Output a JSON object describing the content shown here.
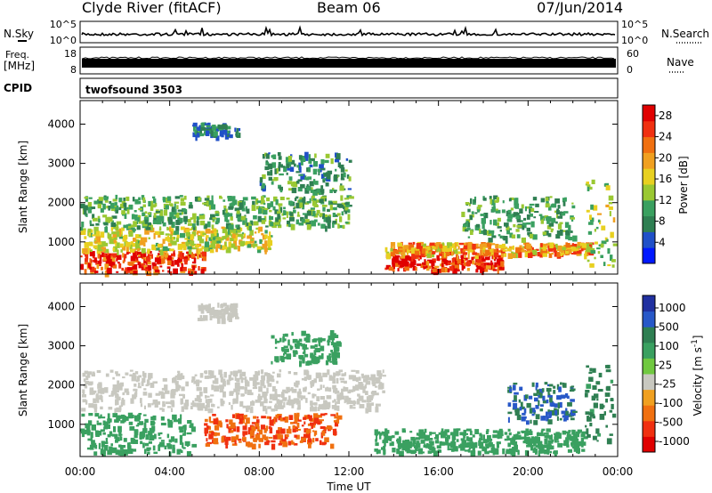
{
  "header": {
    "station": "Clyde River (fitACF)",
    "beam": "Beam 06",
    "date": "07/Jun/2014"
  },
  "top_panels": {
    "nsky_label": "N.Sky",
    "nsearch_label": "N.Search",
    "freq_label": "Freq.",
    "freq_unit": "[MHz]",
    "nave_label": "Nave",
    "cpid_label": "CPID",
    "cpid_value": "twofsound 3503",
    "noise_ticks": [
      "10^5",
      "10^0"
    ],
    "freq_ticks": [
      "18",
      "8"
    ],
    "nave_ticks": [
      "60",
      "0"
    ]
  },
  "chart_data": [
    {
      "type": "heatmap",
      "title": "",
      "xlabel": "Time UT",
      "ylabel": "Slant Range [km]",
      "xlim": [
        0,
        24
      ],
      "ylim": [
        180,
        4600
      ],
      "x_ticks": [
        "00:00",
        "04:00",
        "08:00",
        "12:00",
        "16:00",
        "20:00",
        "00:00"
      ],
      "y_ticks": [
        1000,
        2000,
        3000,
        4000
      ],
      "colorbar": {
        "label": "Power [dB]",
        "ticks": [
          4,
          8,
          12,
          16,
          20,
          24,
          28
        ],
        "range": [
          0,
          30
        ],
        "colors": [
          "#0018ff",
          "#2050c8",
          "#2f7f52",
          "#3aa060",
          "#9ac832",
          "#e8d020",
          "#f0a020",
          "#f07010",
          "#f03010",
          "#e00000"
        ]
      },
      "scatter_regions": [
        {
          "t": [
            0.0,
            5.5
          ],
          "r": [
            250,
            800
          ],
          "level": 26
        },
        {
          "t": [
            0.0,
            8.5
          ],
          "r": [
            800,
            1400
          ],
          "level": 16
        },
        {
          "t": [
            0.0,
            12.0
          ],
          "r": [
            1400,
            2200
          ],
          "level": 11
        },
        {
          "t": [
            5.0,
            7.0
          ],
          "r": [
            3700,
            4050
          ],
          "level": 7
        },
        {
          "t": [
            8.0,
            12.0
          ],
          "r": [
            2300,
            3300
          ],
          "level": 9
        },
        {
          "t": [
            13.6,
            18.8
          ],
          "r": [
            300,
            700
          ],
          "level": 28
        },
        {
          "t": [
            13.6,
            22.8
          ],
          "r": [
            700,
            1000
          ],
          "level": 20
        },
        {
          "t": [
            17.0,
            22.0
          ],
          "r": [
            1100,
            2200
          ],
          "level": 10
        },
        {
          "t": [
            22.5,
            23.8
          ],
          "r": [
            400,
            2600
          ],
          "level": 14
        }
      ]
    },
    {
      "type": "heatmap",
      "title": "",
      "xlabel": "Time UT",
      "ylabel": "Slant Range [km]",
      "xlim": [
        0,
        24
      ],
      "ylim": [
        180,
        4600
      ],
      "x_ticks": [
        "00:00",
        "04:00",
        "08:00",
        "12:00",
        "16:00",
        "20:00",
        "00:00"
      ],
      "y_ticks": [
        1000,
        2000,
        3000,
        4000
      ],
      "colorbar": {
        "label": "Velocity [m s^-1]",
        "tick_labels": [
          "1000",
          "500",
          "100",
          "25",
          "-25",
          "-100",
          "-500",
          "-1000"
        ],
        "colors": [
          "#2030a0",
          "#2858c8",
          "#2f7f52",
          "#3aa060",
          "#70c840",
          "#c8c8c0",
          "#f0a020",
          "#f07010",
          "#f03010",
          "#e00000"
        ]
      },
      "scatter_regions": [
        {
          "t": [
            0.0,
            5.0
          ],
          "r": [
            300,
            1300
          ],
          "level": 200
        },
        {
          "t": [
            0.0,
            13.5
          ],
          "r": [
            1400,
            2400
          ],
          "level": 0
        },
        {
          "t": [
            5.5,
            11.5
          ],
          "r": [
            500,
            1300
          ],
          "level": -300
        },
        {
          "t": [
            5.2,
            7.0
          ],
          "r": [
            3700,
            4100
          ],
          "level": 0
        },
        {
          "t": [
            8.5,
            11.5
          ],
          "r": [
            2600,
            3400
          ],
          "level": 150
        },
        {
          "t": [
            13.0,
            22.5
          ],
          "r": [
            300,
            900
          ],
          "level": 200
        },
        {
          "t": [
            19.0,
            22.0
          ],
          "r": [
            1100,
            2100
          ],
          "level": 700
        },
        {
          "t": [
            22.5,
            23.8
          ],
          "r": [
            600,
            2600
          ],
          "level": 400
        }
      ]
    }
  ],
  "colors": {
    "trace": "#000000",
    "background": "#ffffff"
  }
}
